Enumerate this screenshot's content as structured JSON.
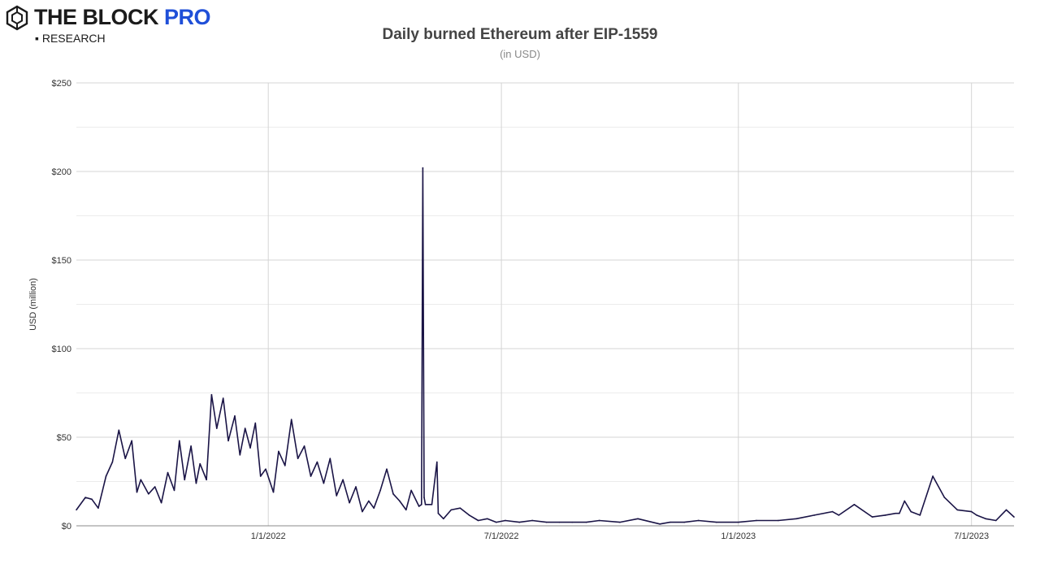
{
  "brand": {
    "name": "THE BLOCK",
    "pro": "PRO",
    "sub": "RESEARCH",
    "bullet": "▪",
    "icon": "cube-logo-icon",
    "pro_color": "#1f4fd8"
  },
  "chart_data": {
    "type": "line",
    "title": "Daily burned Ethereum after EIP-1559",
    "subtitle": "(in USD)",
    "ylabel": "USD (million)",
    "xlabel": "",
    "ylim": [
      0,
      250
    ],
    "yticks": [
      0,
      50,
      100,
      150,
      200,
      250
    ],
    "ytick_labels": [
      "$0",
      "$50",
      "$100",
      "$150",
      "$200",
      "$250"
    ],
    "xticks": [
      "2022-01-01",
      "2022-07-01",
      "2023-01-01",
      "2023-07-01"
    ],
    "xtick_labels": [
      "1/1/2022",
      "7/1/2022",
      "1/1/2023",
      "7/1/2023"
    ],
    "grid": true,
    "line_color": "#1a1446",
    "series": [
      {
        "x": [
          "2021-08-05",
          "2021-08-12",
          "2021-08-17",
          "2021-08-22",
          "2021-08-28",
          "2021-09-02",
          "2021-09-07",
          "2021-09-12",
          "2021-09-17",
          "2021-09-21",
          "2021-09-24",
          "2021-09-30",
          "2021-10-05",
          "2021-10-10",
          "2021-10-15",
          "2021-10-20",
          "2021-10-24",
          "2021-10-28",
          "2021-11-02",
          "2021-11-06",
          "2021-11-09",
          "2021-11-14",
          "2021-11-18",
          "2021-11-22",
          "2021-11-27",
          "2021-12-01",
          "2021-12-06",
          "2021-12-10",
          "2021-12-14",
          "2021-12-18",
          "2021-12-22",
          "2021-12-26",
          "2021-12-30",
          "2022-01-05",
          "2022-01-09",
          "2022-01-14",
          "2022-01-19",
          "2022-01-24",
          "2022-01-29",
          "2022-02-03",
          "2022-02-08",
          "2022-02-13",
          "2022-02-18",
          "2022-02-23",
          "2022-02-28",
          "2022-03-05",
          "2022-03-10",
          "2022-03-15",
          "2022-03-20",
          "2022-03-24",
          "2022-03-29",
          "2022-04-03",
          "2022-04-08",
          "2022-04-13",
          "2022-04-18",
          "2022-04-22",
          "2022-04-28",
          "2022-04-30",
          "2022-05-01",
          "2022-05-02",
          "2022-05-03",
          "2022-05-08",
          "2022-05-12",
          "2022-05-13",
          "2022-05-17",
          "2022-05-23",
          "2022-05-30",
          "2022-06-06",
          "2022-06-13",
          "2022-06-20",
          "2022-06-27",
          "2022-07-04",
          "2022-07-15",
          "2022-07-25",
          "2022-08-05",
          "2022-08-15",
          "2022-08-25",
          "2022-09-05",
          "2022-09-15",
          "2022-10-01",
          "2022-10-15",
          "2022-11-01",
          "2022-11-09",
          "2022-11-20",
          "2022-12-01",
          "2022-12-15",
          "2023-01-01",
          "2023-01-15",
          "2023-02-01",
          "2023-02-15",
          "2023-03-01",
          "2023-03-15",
          "2023-03-20",
          "2023-04-01",
          "2023-04-15",
          "2023-04-25",
          "2023-05-03",
          "2023-05-06",
          "2023-05-10",
          "2023-05-15",
          "2023-05-22",
          "2023-06-01",
          "2023-06-10",
          "2023-06-20",
          "2023-07-01",
          "2023-07-05",
          "2023-07-12",
          "2023-07-20",
          "2023-07-28",
          "2023-08-03"
        ],
        "values": [
          9,
          16,
          15,
          10,
          28,
          36,
          54,
          38,
          48,
          19,
          26,
          18,
          22,
          13,
          30,
          20,
          48,
          26,
          45,
          24,
          35,
          26,
          74,
          55,
          72,
          48,
          62,
          40,
          55,
          44,
          58,
          28,
          32,
          19,
          42,
          34,
          60,
          38,
          45,
          28,
          36,
          24,
          38,
          17,
          26,
          13,
          22,
          8,
          14,
          10,
          20,
          32,
          18,
          14,
          9,
          20,
          11,
          12,
          202,
          16,
          12,
          12,
          36,
          7,
          4,
          9,
          10,
          6,
          3,
          4,
          2,
          3,
          2,
          3,
          2,
          2,
          2,
          2,
          3,
          2,
          4,
          1,
          2,
          2,
          3,
          2,
          2,
          3,
          3,
          4,
          6,
          8,
          6,
          12,
          5,
          6,
          7,
          7,
          14,
          8,
          6,
          28,
          16,
          9,
          8,
          6,
          4,
          3,
          9,
          5
        ]
      }
    ]
  }
}
